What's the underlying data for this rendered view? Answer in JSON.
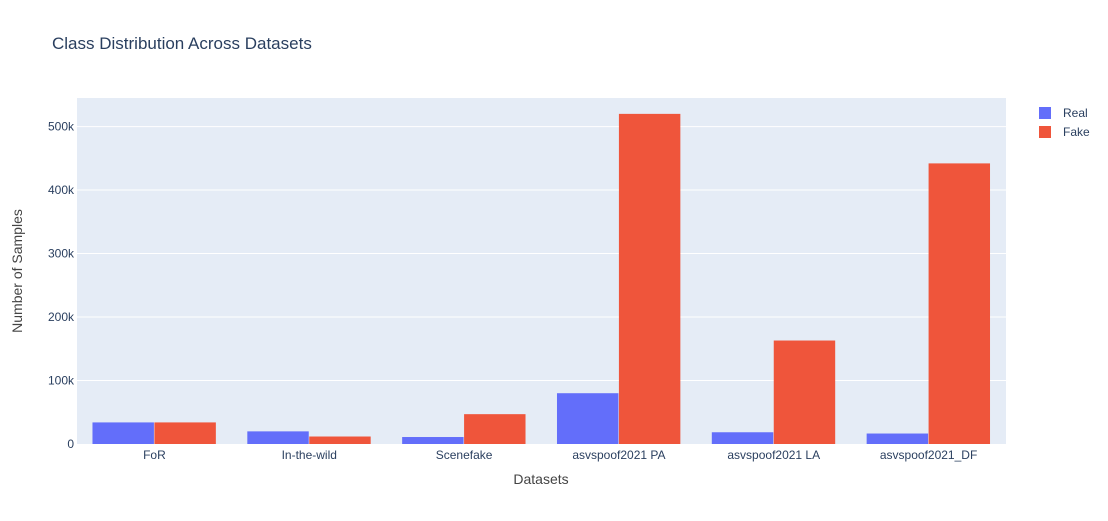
{
  "chart_data": {
    "type": "bar",
    "title": "Class Distribution Across Datasets",
    "xlabel": "Datasets",
    "ylabel": "Number of Samples",
    "categories": [
      "FoR",
      "In-the-wild",
      "Scenefake",
      "asvspoof2021 PA",
      "asvspoof2021 LA",
      "asvspoof2021_DF"
    ],
    "series": [
      {
        "name": "Real",
        "color": "#636efa",
        "values": [
          34000,
          19900,
          11000,
          80000,
          18500,
          16500
        ]
      },
      {
        "name": "Fake",
        "color": "#ef553b",
        "values": [
          34000,
          11800,
          47000,
          520000,
          163000,
          442000
        ]
      }
    ],
    "ylim": [
      0,
      545000
    ],
    "yticks": [
      0,
      100000,
      200000,
      300000,
      400000,
      500000
    ],
    "ytick_labels": [
      "0",
      "100k",
      "200k",
      "300k",
      "400k",
      "500k"
    ],
    "grid": true,
    "legend_position": "top-right",
    "background": "#e5ecf6"
  }
}
